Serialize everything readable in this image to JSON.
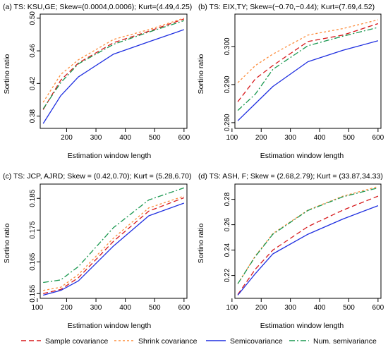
{
  "legend": {
    "entries": [
      {
        "label": "Sample covariance",
        "color": "#d7191c",
        "dash": "dashed"
      },
      {
        "label": "Shrink covariance",
        "color": "#fd8d3c",
        "dash": "dotted"
      },
      {
        "label": "Semicovariance",
        "color": "#1f2fe0",
        "dash": "solid"
      },
      {
        "label": "Num. semivariance",
        "color": "#1a9850",
        "dash": "dotdash"
      }
    ]
  },
  "chart_data": [
    {
      "type": "line",
      "title": "(a) TS: KSU,GE; Skew=(0.0004,0.0006); Kurt=(4.49,4.25)",
      "xlabel": "Estimation window length",
      "ylabel": "Sortino ratio",
      "xlim": [
        110,
        610
      ],
      "ylim": [
        0.365,
        0.505
      ],
      "xticks": [
        200,
        300,
        400,
        500,
        600
      ],
      "xtick_labels": [
        "200",
        "300",
        "400",
        "500",
        "600"
      ],
      "yticks": [
        0.38,
        0.42,
        0.46,
        0.5
      ],
      "ytick_labels": [
        "0.38",
        "0.42",
        "0.46",
        "0.50"
      ],
      "x": [
        120,
        180,
        240,
        360,
        480,
        600
      ],
      "series": [
        {
          "name": "Sample covariance",
          "values": [
            0.388,
            0.424,
            0.445,
            0.47,
            0.484,
            0.499
          ]
        },
        {
          "name": "Shrink covariance",
          "values": [
            0.397,
            0.431,
            0.449,
            0.474,
            0.486,
            0.5
          ]
        },
        {
          "name": "Semicovariance",
          "values": [
            0.371,
            0.405,
            0.428,
            0.456,
            0.471,
            0.486
          ]
        },
        {
          "name": "Num. semivariance",
          "values": [
            0.389,
            0.421,
            0.444,
            0.468,
            0.483,
            0.497
          ]
        }
      ]
    },
    {
      "type": "line",
      "title": "(b) TS: EIX,TY; Skew=(−0.70,−0.44); Kurt=(7.69,4.52)",
      "xlabel": "Estimation window length",
      "ylabel": "Sortino ratio",
      "xlim": [
        110,
        610
      ],
      "ylim": [
        0.2785,
        0.3085
      ],
      "xticks": [
        100,
        200,
        300,
        400,
        500,
        600
      ],
      "xtick_labels": [
        "100",
        "200",
        "300",
        "400",
        "500",
        "600"
      ],
      "yticks": [
        0.28,
        0.29,
        0.3
      ],
      "ytick_labels": [
        "0.280",
        "0.290",
        "0.300"
      ],
      "x": [
        120,
        180,
        240,
        360,
        480,
        600
      ],
      "series": [
        {
          "name": "Sample covariance",
          "values": [
            0.2855,
            0.2915,
            0.295,
            0.3013,
            0.303,
            0.306
          ]
        },
        {
          "name": "Shrink covariance",
          "values": [
            0.2905,
            0.295,
            0.298,
            0.303,
            0.3047,
            0.307
          ]
        },
        {
          "name": "Semicovariance",
          "values": [
            0.2805,
            0.285,
            0.2895,
            0.296,
            0.299,
            0.3015
          ]
        },
        {
          "name": "Num. semivariance",
          "values": [
            0.2832,
            0.2875,
            0.294,
            0.3002,
            0.3027,
            0.305
          ]
        }
      ]
    },
    {
      "type": "line",
      "title": "(c) TS: JCP, AJRD; Skew = (0.42,0.70); Kurt = (5.28,6.70)",
      "xlabel": "Estimation window length",
      "ylabel": "Sortino ratio",
      "xlim": [
        110,
        610
      ],
      "ylim": [
        0.1535,
        0.1895
      ],
      "xticks": [
        100,
        200,
        300,
        400,
        500,
        600
      ],
      "xtick_labels": [
        "100",
        "200",
        "300",
        "400",
        "500",
        "600"
      ],
      "yticks": [
        0.155,
        0.165,
        0.175,
        0.185
      ],
      "ytick_labels": [
        "0.155",
        "0.165",
        "0.175",
        "0.185"
      ],
      "x": [
        120,
        180,
        240,
        360,
        480,
        600
      ],
      "series": [
        {
          "name": "Sample covariance",
          "values": [
            0.155,
            0.1563,
            0.16,
            0.1715,
            0.181,
            0.1852
          ]
        },
        {
          "name": "Shrink covariance",
          "values": [
            0.156,
            0.157,
            0.161,
            0.1725,
            0.182,
            0.1857
          ]
        },
        {
          "name": "Semicovariance",
          "values": [
            0.1545,
            0.156,
            0.159,
            0.17,
            0.1795,
            0.1835
          ]
        },
        {
          "name": "Num. semivariance",
          "values": [
            0.1585,
            0.1593,
            0.1635,
            0.1758,
            0.1845,
            0.1883
          ]
        }
      ]
    },
    {
      "type": "line",
      "title": "(d) TS: ASH, F; Skew = (2.68,2.79); Kurt = (33.87,34.33)",
      "xlabel": "Estimation window length",
      "ylabel": "Sortino ratio",
      "xlim": [
        110,
        610
      ],
      "ylim": [
        0.202,
        0.292
      ],
      "xticks": [
        100,
        200,
        300,
        400,
        500,
        600
      ],
      "xtick_labels": [
        "100",
        "200",
        "300",
        "400",
        "500",
        "600"
      ],
      "yticks": [
        0.22,
        0.24,
        0.26,
        0.28
      ],
      "ytick_labels": [
        "0.22",
        "0.24",
        "0.26",
        "0.28"
      ],
      "x": [
        120,
        180,
        240,
        360,
        480,
        600
      ],
      "series": [
        {
          "name": "Sample covariance",
          "values": [
            0.205,
            0.225,
            0.24,
            0.2585,
            0.2715,
            0.2825
          ]
        },
        {
          "name": "Shrink covariance",
          "values": [
            0.2135,
            0.2355,
            0.253,
            0.2715,
            0.2825,
            0.29
          ]
        },
        {
          "name": "Semicovariance",
          "values": [
            0.2045,
            0.2215,
            0.237,
            0.2525,
            0.2645,
            0.275
          ]
        },
        {
          "name": "Num. semivariance",
          "values": [
            0.2135,
            0.235,
            0.2525,
            0.2712,
            0.282,
            0.289
          ]
        }
      ]
    }
  ]
}
